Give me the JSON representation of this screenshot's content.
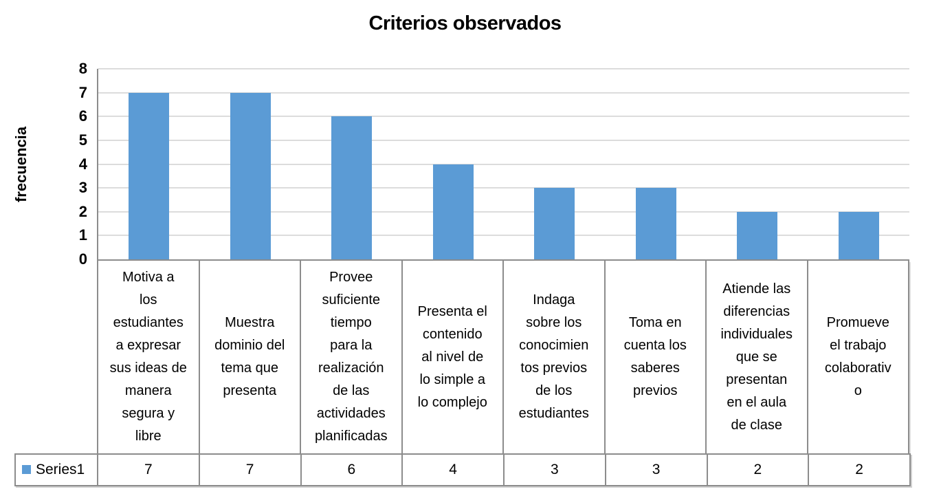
{
  "chart_data": {
    "type": "bar",
    "title": "Criterios observados",
    "xlabel": "",
    "ylabel": "frecuencia",
    "ylim": [
      0,
      8
    ],
    "ytick_step": 1,
    "ytick_labels": [
      "0",
      "1",
      "2",
      "3",
      "4",
      "5",
      "6",
      "7",
      "8"
    ],
    "grid": true,
    "legend_position": "data-table-left",
    "legend_marker": {
      "shape": "square",
      "color": "#5B9BD5"
    },
    "bar_color": "#5B9BD5",
    "categories": [
      "Motiva a los estudiantes a expresar sus ideas de manera segura y libre",
      "Muestra dominio del tema que presenta",
      "Provee suficiente tiempo para la realización de las actividades planificadas",
      "Presenta el contenido al nivel de lo simple a lo complejo",
      "Indaga sobre los conocimientos previos de los estudiantes",
      "Toma en cuenta los saberes previos",
      "Atiende las diferencias individuales que se presentan en el aula de clase",
      "Promueve el trabajo colaborativo"
    ],
    "categories_wrapped": [
      "Motiva a\nlos\nestudiantes\na expresar\nsus ideas de\nmanera\nsegura y\nlibre",
      "Muestra\ndominio del\ntema que\npresenta",
      "Provee\nsuficiente\ntiempo\npara la\nrealización\nde las\nactividades\nplanificadas",
      "Presenta el\ncontenido\nal nivel de\nlo simple a\nlo complejo",
      "Indaga\nsobre los\nconocimien\ntos previos\nde los\nestudiantes",
      "Toma en\ncuenta los\nsaberes\nprevios",
      "Atiende las\ndiferencias\nindividuales\nque se\npresentan\nen el aula\nde clase",
      "Promueve\nel trabajo\ncolaborativ\no"
    ],
    "series": [
      {
        "name": "Series1",
        "values": [
          7,
          7,
          6,
          4,
          3,
          3,
          2,
          2
        ]
      }
    ]
  },
  "colors": {
    "bar": "#5B9BD5",
    "gridline": "#DCDCDC",
    "axis_and_borders": "#8C8C8C",
    "text": "#000000",
    "background": "#FFFFFF"
  }
}
